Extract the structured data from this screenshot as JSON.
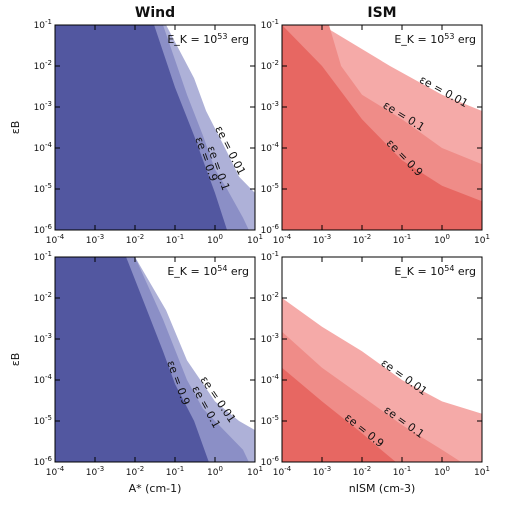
{
  "chart_data": [
    {
      "type": "area",
      "panel": "wind-top",
      "title": "Wind",
      "annotation": {
        "base": "E_K = 10",
        "exp": "53",
        "unit": " erg"
      },
      "xlabel": "",
      "ylabel": "εB",
      "xscale": "log",
      "yscale": "log",
      "xlim": [
        0.0001,
        10
      ],
      "ylim": [
        1e-06,
        0.1
      ],
      "x_ticks": [
        "10-4",
        "10-3",
        "10-2",
        "10-1",
        "100",
        "101"
      ],
      "y_ticks": [
        "10-6",
        "10-5",
        "10-4",
        "10-3",
        "10-2",
        "10-1"
      ],
      "series": [
        {
          "name": "εe = 0.01",
          "color": "#aeb1d8",
          "boundary": [
            [
              0.06,
              0.1
            ],
            [
              0.3,
              0.005
            ],
            [
              0.6,
              0.0008
            ],
            [
              2,
              8e-05
            ],
            [
              4,
              2e-05
            ],
            [
              10,
              8e-06
            ]
          ]
        },
        {
          "name": "εe = 0.1",
          "color": "#8b8fc6",
          "boundary": [
            [
              0.05,
              0.1
            ],
            [
              0.2,
              0.002
            ],
            [
              0.5,
              0.0002
            ],
            [
              1,
              3e-05
            ],
            [
              2,
              1e-05
            ],
            [
              5,
              2e-06
            ],
            [
              7,
              1e-06
            ]
          ]
        },
        {
          "name": "εe = 0.9",
          "color": "#5257a0",
          "boundary": [
            [
              0.03,
              0.1
            ],
            [
              0.1,
              0.003
            ],
            [
              0.3,
              0.0002
            ],
            [
              0.5,
              5e-05
            ],
            [
              1,
              8e-06
            ],
            [
              2,
              1e-06
            ]
          ]
        }
      ]
    },
    {
      "type": "area",
      "panel": "ism-top",
      "title": "ISM",
      "annotation": {
        "base": "E_K = 10",
        "exp": "53",
        "unit": " erg"
      },
      "xlabel": "",
      "ylabel": "",
      "xscale": "log",
      "yscale": "log",
      "xlim": [
        0.0001,
        10
      ],
      "ylim": [
        1e-06,
        0.1
      ],
      "x_ticks": [
        "10-4",
        "10-3",
        "10-2",
        "10-1",
        "100",
        "101"
      ],
      "y_ticks": [
        "10-6",
        "10-5",
        "10-4",
        "10-3",
        "10-2",
        "10-1"
      ],
      "series": [
        {
          "name": "εe = 0.01",
          "color": "#f5aaa8",
          "boundary": [
            [
              0.001,
              0.1
            ],
            [
              0.05,
              0.01
            ],
            [
              1,
              0.002
            ],
            [
              10,
              0.0008
            ]
          ]
        },
        {
          "name": "εe = 0.1",
          "color": "#ef8c88",
          "boundary": [
            [
              0.0015,
              0.1
            ],
            [
              0.003,
              0.01
            ],
            [
              0.01,
              0.002
            ],
            [
              0.1,
              0.0005
            ],
            [
              1,
              0.0001
            ],
            [
              10,
              4e-05
            ]
          ]
        },
        {
          "name": "εe = 0.9",
          "color": "#e76762",
          "boundary": [
            [
              0.0001,
              0.1
            ],
            [
              0.001,
              0.01
            ],
            [
              0.01,
              0.0005
            ],
            [
              0.1,
              5e-05
            ],
            [
              1,
              1.2e-05
            ],
            [
              10,
              5e-06
            ]
          ]
        }
      ]
    },
    {
      "type": "area",
      "panel": "wind-bottom",
      "title": "",
      "annotation": {
        "base": "E_K = 10",
        "exp": "54",
        "unit": " erg"
      },
      "xlabel": "A* (cm-1)",
      "ylabel": "εB",
      "xscale": "log",
      "yscale": "log",
      "xlim": [
        0.0001,
        10
      ],
      "ylim": [
        1e-06,
        0.1
      ],
      "x_ticks": [
        "10-4",
        "10-3",
        "10-2",
        "10-1",
        "100",
        "101"
      ],
      "y_ticks": [
        "10-6",
        "10-5",
        "10-4",
        "10-3",
        "10-2",
        "10-1"
      ],
      "series": [
        {
          "name": "εe = 0.01",
          "color": "#aeb1d8",
          "boundary": [
            [
              0.01,
              0.1
            ],
            [
              0.06,
              0.005
            ],
            [
              0.2,
              0.0003
            ],
            [
              1,
              3e-05
            ],
            [
              4,
              1e-05
            ],
            [
              10,
              6e-06
            ]
          ]
        },
        {
          "name": "εe = 0.1",
          "color": "#8b8fc6",
          "boundary": [
            [
              0.01,
              0.1
            ],
            [
              0.05,
              0.003
            ],
            [
              0.2,
              0.0001
            ],
            [
              0.5,
              2e-05
            ],
            [
              1,
              1e-05
            ],
            [
              5,
              2e-06
            ],
            [
              7,
              1e-06
            ]
          ]
        },
        {
          "name": "εe = 0.9",
          "color": "#5257a0",
          "boundary": [
            [
              0.006,
              0.1
            ],
            [
              0.02,
              0.005
            ],
            [
              0.05,
              0.0005
            ],
            [
              0.1,
              8e-05
            ],
            [
              0.3,
              1e-05
            ],
            [
              0.7,
              1e-06
            ]
          ]
        }
      ]
    },
    {
      "type": "area",
      "panel": "ism-bottom",
      "title": "",
      "annotation": {
        "base": "E_K = 10",
        "exp": "54",
        "unit": " erg"
      },
      "xlabel": "nISM (cm-3)",
      "ylabel": "",
      "xscale": "log",
      "yscale": "log",
      "xlim": [
        0.0001,
        10
      ],
      "ylim": [
        1e-06,
        0.1
      ],
      "x_ticks": [
        "10-4",
        "10-3",
        "10-2",
        "10-1",
        "100",
        "101"
      ],
      "y_ticks": [
        "10-6",
        "10-5",
        "10-4",
        "10-3",
        "10-2",
        "10-1"
      ],
      "series": [
        {
          "name": "εe = 0.01",
          "color": "#f5aaa8",
          "boundary": [
            [
              0.0001,
              0.01
            ],
            [
              0.001,
              0.002
            ],
            [
              0.01,
              0.0005
            ],
            [
              0.1,
              0.0001
            ],
            [
              1,
              3e-05
            ],
            [
              10,
              1.5e-05
            ]
          ]
        },
        {
          "name": "εe = 0.1",
          "color": "#ef8c88",
          "boundary": [
            [
              0.0001,
              0.0015
            ],
            [
              0.001,
              0.0002
            ],
            [
              0.01,
              4e-05
            ],
            [
              0.1,
              8e-06
            ],
            [
              1,
              2e-06
            ],
            [
              3,
              1e-06
            ]
          ]
        },
        {
          "name": "εe = 0.9",
          "color": "#e76762",
          "boundary": [
            [
              0.0001,
              0.0002
            ],
            [
              0.001,
              3e-05
            ],
            [
              0.01,
              5e-06
            ],
            [
              0.03,
              2e-06
            ],
            [
              0.07,
              1e-06
            ]
          ]
        }
      ]
    }
  ]
}
